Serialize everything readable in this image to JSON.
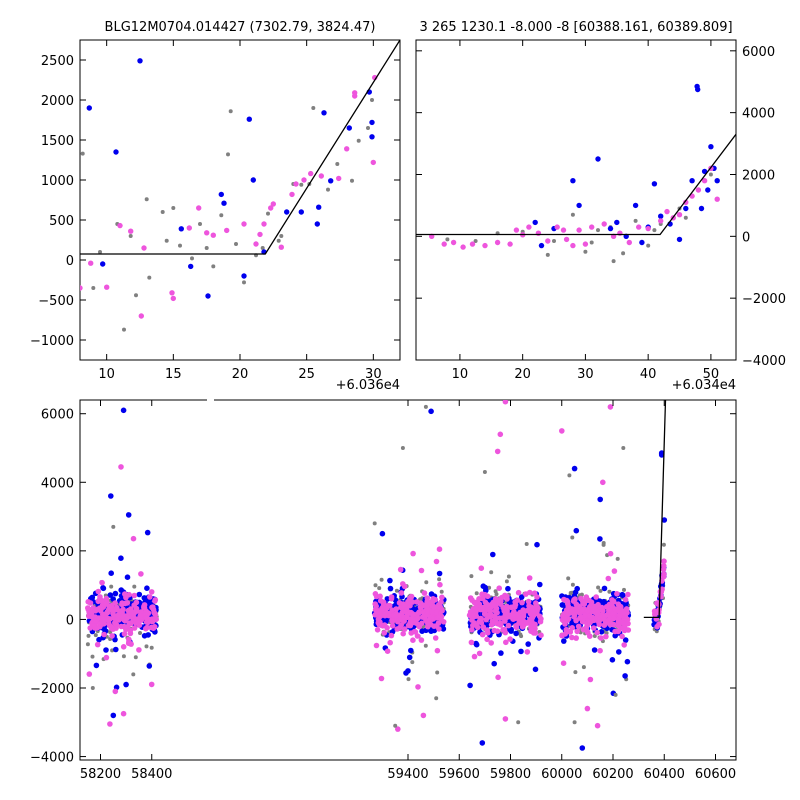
{
  "colors": {
    "background": "#ffffff",
    "axes": "#000000",
    "fit_line": "#000000",
    "series_gray": "#808080",
    "series_blue": "#0000ee",
    "series_magenta": "#ee55dd"
  },
  "chart_data": [
    {
      "id": "top-left",
      "type": "scatter",
      "title": "BLG12M0704.014427 (7302.79, 3824.47)",
      "xlim": [
        8,
        32
      ],
      "ylim": [
        -1250,
        2750
      ],
      "xticks": [
        10,
        15,
        20,
        25,
        30
      ],
      "yticks": [
        -1000,
        -500,
        0,
        500,
        1000,
        1500,
        2000,
        2500
      ],
      "x_offset_label": "+6.036e4",
      "y_axis_side": "left",
      "grid": false,
      "fit_line": [
        [
          8,
          75
        ],
        [
          21.9,
          75
        ],
        [
          32,
          2750
        ]
      ],
      "series": [
        {
          "color": "gray",
          "points": [
            [
              8.2,
              1330
            ],
            [
              9,
              -350
            ],
            [
              9.5,
              100
            ],
            [
              10.8,
              450
            ],
            [
              11.3,
              -870
            ],
            [
              11.8,
              300
            ],
            [
              12.2,
              -440
            ],
            [
              13,
              760
            ],
            [
              13.2,
              -220
            ],
            [
              14.2,
              600
            ],
            [
              14.5,
              240
            ],
            [
              15,
              650
            ],
            [
              15.5,
              180
            ],
            [
              16.4,
              20
            ],
            [
              17,
              450
            ],
            [
              17.5,
              150
            ],
            [
              18,
              -80
            ],
            [
              18.6,
              560
            ],
            [
              19.1,
              1320
            ],
            [
              19.3,
              1860
            ],
            [
              19.7,
              200
            ],
            [
              20.3,
              -280
            ],
            [
              21.2,
              60
            ],
            [
              21.7,
              150
            ],
            [
              22.1,
              580
            ],
            [
              22.9,
              240
            ],
            [
              23.1,
              300
            ],
            [
              24,
              950
            ],
            [
              24.6,
              940
            ],
            [
              25.2,
              950
            ],
            [
              25.5,
              1900
            ],
            [
              26.6,
              880
            ],
            [
              27.3,
              1200
            ],
            [
              28.4,
              990
            ],
            [
              28.9,
              1490
            ],
            [
              29.6,
              1650
            ],
            [
              29.9,
              2000
            ]
          ]
        },
        {
          "color": "blue",
          "points": [
            [
              8.7,
              1900
            ],
            [
              9.7,
              -50
            ],
            [
              10.7,
              1350
            ],
            [
              12.5,
              2490
            ],
            [
              15.6,
              390
            ],
            [
              16.3,
              -80
            ],
            [
              17.6,
              -450
            ],
            [
              18.6,
              820
            ],
            [
              18.8,
              710
            ],
            [
              20.3,
              -200
            ],
            [
              20.7,
              1760
            ],
            [
              21,
              1000
            ],
            [
              21.8,
              100
            ],
            [
              23.5,
              600
            ],
            [
              24.6,
              600
            ],
            [
              25.8,
              450
            ],
            [
              25.9,
              660
            ],
            [
              26.3,
              1840
            ],
            [
              26.8,
              990
            ],
            [
              28.2,
              1650
            ],
            [
              29.7,
              2100
            ],
            [
              29.9,
              1720
            ],
            [
              29.9,
              1540
            ]
          ]
        },
        {
          "color": "magenta",
          "points": [
            [
              8,
              -350
            ],
            [
              8.8,
              -40
            ],
            [
              10,
              -340
            ],
            [
              11,
              430
            ],
            [
              11.8,
              360
            ],
            [
              12.6,
              -700
            ],
            [
              12.8,
              150
            ],
            [
              14.9,
              -410
            ],
            [
              15,
              -480
            ],
            [
              16.2,
              400
            ],
            [
              16.9,
              650
            ],
            [
              17.5,
              340
            ],
            [
              18,
              310
            ],
            [
              19,
              370
            ],
            [
              20.3,
              450
            ],
            [
              21.2,
              200
            ],
            [
              21.5,
              320
            ],
            [
              21.8,
              450
            ],
            [
              22.3,
              650
            ],
            [
              22.5,
              700
            ],
            [
              23.1,
              160
            ],
            [
              23.9,
              820
            ],
            [
              24.2,
              950
            ],
            [
              24.8,
              1000
            ],
            [
              25.3,
              1080
            ],
            [
              26.1,
              1050
            ],
            [
              27.4,
              1020
            ],
            [
              28,
              1390
            ],
            [
              28.6,
              2050
            ],
            [
              28.6,
              2090
            ],
            [
              30,
              1220
            ],
            [
              30.1,
              2280
            ]
          ]
        }
      ]
    },
    {
      "id": "top-right",
      "type": "scatter",
      "title": "3 265 1230.1 -8.000 -8 [60388.161, 60389.809]",
      "xlim": [
        3,
        54
      ],
      "ylim": [
        -4000,
        6350
      ],
      "xticks": [
        10,
        20,
        30,
        40,
        50
      ],
      "yticks": [
        -4000,
        -2000,
        0,
        2000,
        4000,
        6000
      ],
      "x_offset_label": "+6.034e4",
      "y_axis_side": "right",
      "grid": false,
      "fit_line": [
        [
          3,
          60
        ],
        [
          41.9,
          60
        ],
        [
          54,
          3300
        ]
      ],
      "series": [
        {
          "color": "gray",
          "points": [
            [
              8,
              -100
            ],
            [
              12.5,
              -150
            ],
            [
              16,
              100
            ],
            [
              20,
              150
            ],
            [
              24,
              -600
            ],
            [
              25,
              -150
            ],
            [
              28,
              700
            ],
            [
              30,
              -500
            ],
            [
              31,
              -200
            ],
            [
              32,
              200
            ],
            [
              34,
              300
            ],
            [
              34.5,
              -800
            ],
            [
              36,
              -550
            ],
            [
              38,
              500
            ],
            [
              40,
              -300
            ],
            [
              41,
              200
            ],
            [
              42,
              400
            ],
            [
              45,
              900
            ],
            [
              46,
              600
            ],
            [
              48,
              1500
            ],
            [
              50,
              2000
            ]
          ]
        },
        {
          "color": "blue",
          "points": [
            [
              22,
              450
            ],
            [
              23,
              -300
            ],
            [
              25,
              250
            ],
            [
              28,
              1800
            ],
            [
              29,
              1000
            ],
            [
              32,
              2500
            ],
            [
              34,
              250
            ],
            [
              35,
              450
            ],
            [
              36.5,
              0
            ],
            [
              38,
              1000
            ],
            [
              39,
              -200
            ],
            [
              40,
              300
            ],
            [
              41,
              1700
            ],
            [
              42,
              650
            ],
            [
              43.5,
              400
            ],
            [
              45,
              -100
            ],
            [
              46,
              900
            ],
            [
              47,
              1800
            ],
            [
              47.8,
              4850
            ],
            [
              47.9,
              4750
            ],
            [
              48.5,
              900
            ],
            [
              49,
              2100
            ],
            [
              49.5,
              1500
            ],
            [
              50,
              2900
            ],
            [
              50.5,
              2200
            ],
            [
              51,
              1800
            ]
          ]
        },
        {
          "color": "magenta",
          "points": [
            [
              5.5,
              0
            ],
            [
              7.5,
              -250
            ],
            [
              9,
              -200
            ],
            [
              10.5,
              -350
            ],
            [
              12,
              -250
            ],
            [
              14,
              -300
            ],
            [
              16,
              -200
            ],
            [
              18,
              -250
            ],
            [
              19,
              200
            ],
            [
              20,
              50
            ],
            [
              21,
              300
            ],
            [
              22.5,
              100
            ],
            [
              24,
              -150
            ],
            [
              25.5,
              300
            ],
            [
              26.5,
              200
            ],
            [
              27,
              -100
            ],
            [
              28,
              -300
            ],
            [
              29,
              200
            ],
            [
              30,
              -250
            ],
            [
              31,
              300
            ],
            [
              33,
              400
            ],
            [
              34.5,
              0
            ],
            [
              35.5,
              100
            ],
            [
              37,
              -200
            ],
            [
              38.5,
              300
            ],
            [
              40,
              250
            ],
            [
              42,
              500
            ],
            [
              43,
              800
            ],
            [
              44,
              600
            ],
            [
              45,
              700
            ],
            [
              46,
              1100
            ],
            [
              47,
              1300
            ],
            [
              48,
              1500
            ],
            [
              49,
              1800
            ],
            [
              50,
              2200
            ],
            [
              51,
              1200
            ]
          ]
        }
      ]
    },
    {
      "id": "bottom",
      "type": "scatter",
      "title": "",
      "xlim": [
        58120,
        60680
      ],
      "ylim": [
        -4100,
        6400
      ],
      "xticks": [
        58200,
        58400,
        59400,
        59600,
        59800,
        60000,
        60200,
        60400,
        60600
      ],
      "x_break": [
        58450,
        59250
      ],
      "yticks": [
        -4000,
        -2000,
        0,
        2000,
        4000,
        6000
      ],
      "y_axis_side": "left",
      "grid": false,
      "fit_line": [
        [
          60320,
          60
        ],
        [
          60380,
          60
        ],
        [
          60405,
          6400
        ]
      ],
      "seasons": [
        [
          58150,
          58420
        ],
        [
          59270,
          59540
        ],
        [
          59640,
          59920
        ],
        [
          60000,
          60260
        ],
        [
          60360,
          60400
        ]
      ],
      "outliers": [
        {
          "color": "blue",
          "points": [
            [
              58290,
              6100
            ],
            [
              59490,
              6070
            ],
            [
              58250,
              -2800
            ],
            [
              58300,
              -1900
            ],
            [
              58310,
              3050
            ],
            [
              59400,
              -1500
            ],
            [
              59690,
              -3600
            ],
            [
              60080,
              -3750
            ],
            [
              60390,
              4850
            ],
            [
              60390,
              4800
            ],
            [
              60400,
              2900
            ],
            [
              58240,
              3600
            ],
            [
              60050,
              4400
            ],
            [
              60150,
              3500
            ],
            [
              59300,
              2500
            ]
          ]
        },
        {
          "color": "magenta",
          "points": [
            [
              58280,
              4450
            ],
            [
              59780,
              6350
            ],
            [
              60190,
              6200
            ],
            [
              60000,
              5500
            ],
            [
              59760,
              5400
            ],
            [
              58290,
              -2750
            ],
            [
              59460,
              -2800
            ],
            [
              59780,
              -2900
            ],
            [
              60100,
              -2600
            ],
            [
              60140,
              -3100
            ],
            [
              59360,
              -3200
            ],
            [
              59750,
              4900
            ],
            [
              60160,
              4000
            ]
          ]
        },
        {
          "color": "gray",
          "points": [
            [
              59470,
              6200
            ],
            [
              59510,
              -2300
            ],
            [
              59700,
              4300
            ],
            [
              59380,
              5000
            ],
            [
              59270,
              2800
            ],
            [
              60210,
              -2200
            ],
            [
              60050,
              -3000
            ],
            [
              59350,
              -3100
            ],
            [
              59830,
              -3000
            ],
            [
              58170,
              -2000
            ],
            [
              60240,
              5000
            ],
            [
              60030,
              4200
            ],
            [
              58250,
              2700
            ]
          ]
        }
      ]
    }
  ]
}
